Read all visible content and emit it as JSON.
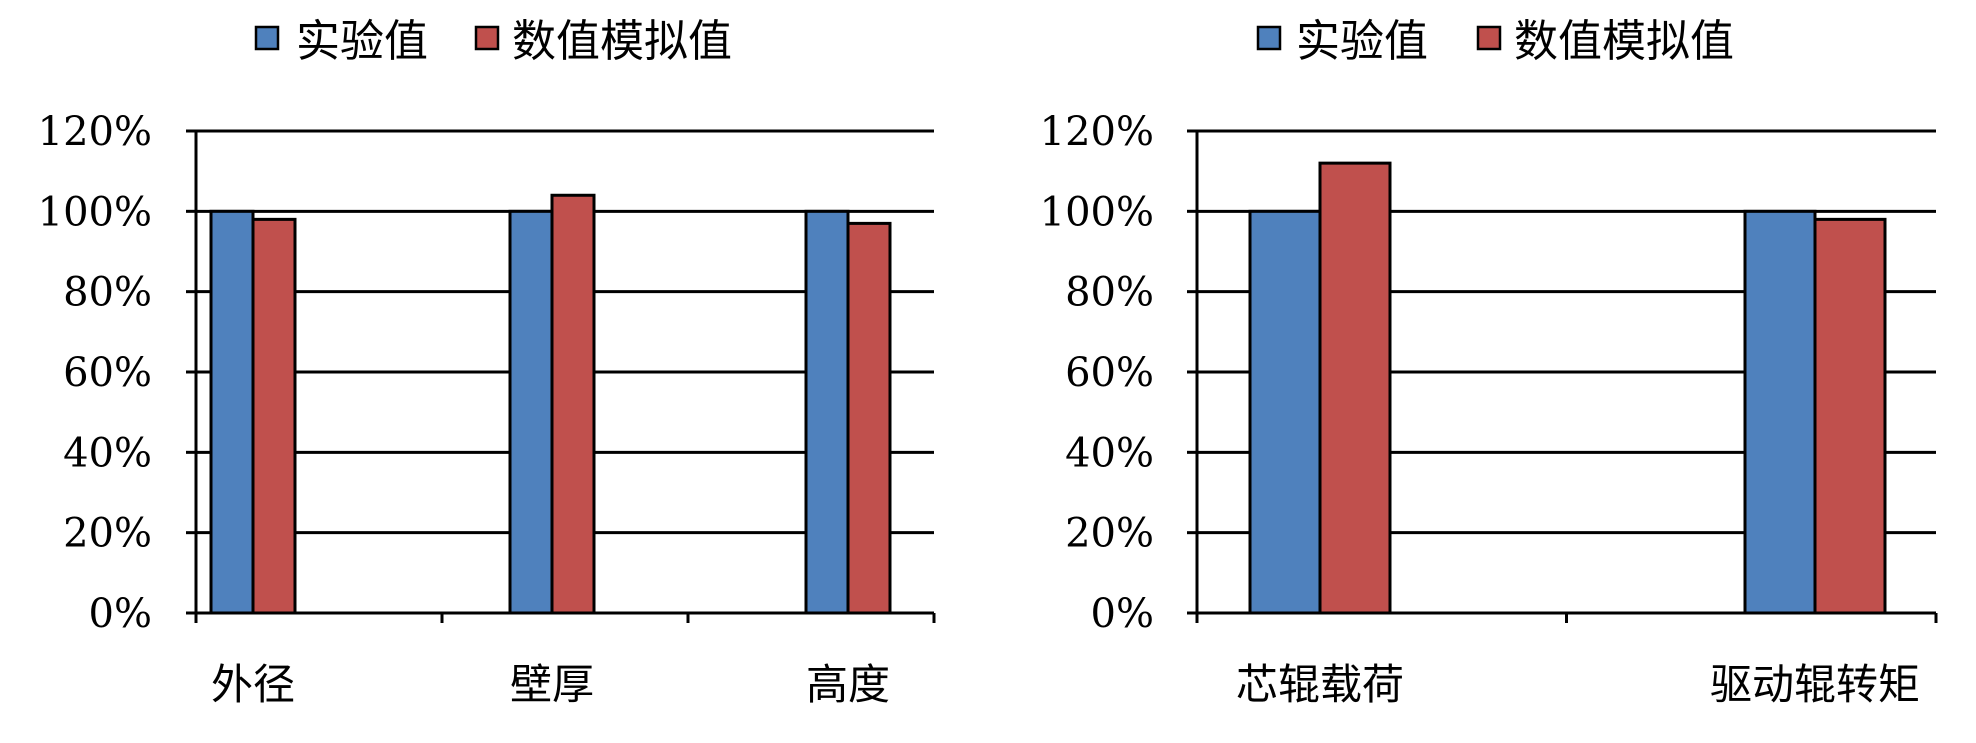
{
  "chart_data": [
    {
      "type": "bar",
      "categories": [
        "外径",
        "壁厚",
        "高度"
      ],
      "series": [
        {
          "name": "实验值",
          "values": [
            100,
            100,
            100
          ]
        },
        {
          "name": "数值模拟值",
          "values": [
            98,
            104,
            97
          ]
        }
      ],
      "y_tick_labels": [
        "0%",
        "20%",
        "40%",
        "60%",
        "80%",
        "100%",
        "120%"
      ],
      "ylim": [
        0,
        120
      ],
      "y_unit": "%",
      "grid": true,
      "legend_position": "top"
    },
    {
      "type": "bar",
      "categories": [
        "芯辊载荷",
        "驱动辊转矩"
      ],
      "series": [
        {
          "name": "实验值",
          "values": [
            100,
            100
          ]
        },
        {
          "name": "数值模拟值",
          "values": [
            112,
            98
          ]
        }
      ],
      "y_tick_labels": [
        "0%",
        "20%",
        "40%",
        "60%",
        "80%",
        "100%",
        "120%"
      ],
      "ylim": [
        0,
        120
      ],
      "y_unit": "%",
      "grid": true,
      "legend_position": "top"
    }
  ],
  "colors": {
    "series": [
      "#4f81bd",
      "#c0504d"
    ],
    "axis": "#000000",
    "grid": "#000000"
  }
}
